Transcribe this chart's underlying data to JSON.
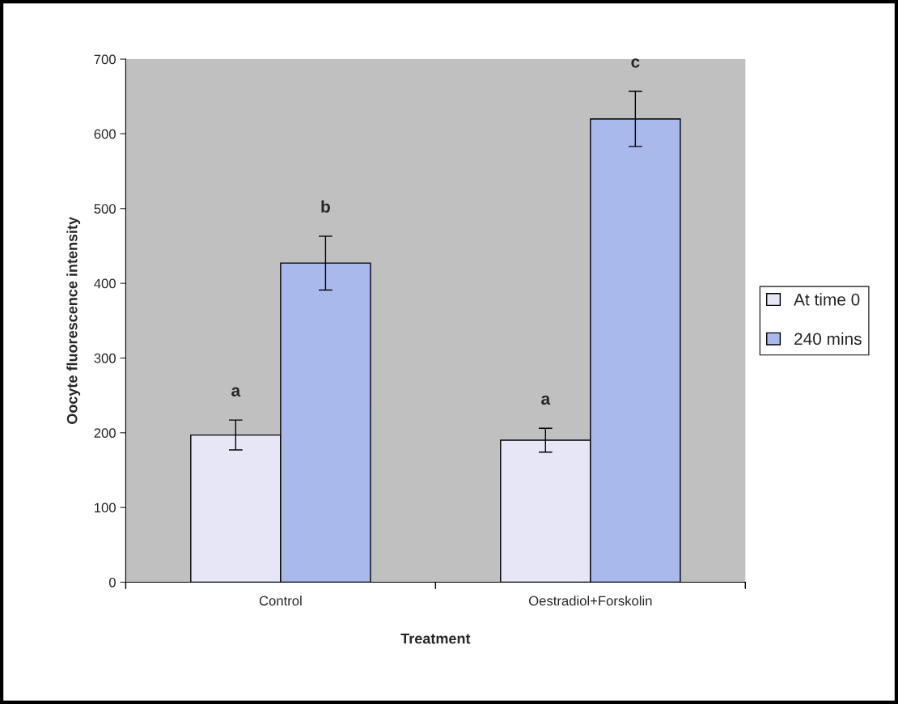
{
  "chart_data": {
    "type": "bar",
    "xlabel": "Treatment",
    "ylabel": "Oocyte fluorescence intensity",
    "categories": [
      "Control",
      "Oestradiol+Forskolin"
    ],
    "series": [
      {
        "name": "At time 0",
        "color": "#e6e6f6",
        "values": [
          197,
          190
        ],
        "errors": [
          20,
          16
        ],
        "value_labels": [
          "a",
          "a"
        ]
      },
      {
        "name": "240 mins",
        "color": "#a9b9ec",
        "values": [
          427,
          620
        ],
        "errors": [
          36,
          37
        ],
        "value_labels": [
          "b",
          "c"
        ]
      }
    ],
    "ylim": [
      0,
      700
    ],
    "yticks": [
      0,
      100,
      200,
      300,
      400,
      500,
      600,
      700
    ],
    "grid": false,
    "legend": "right"
  }
}
